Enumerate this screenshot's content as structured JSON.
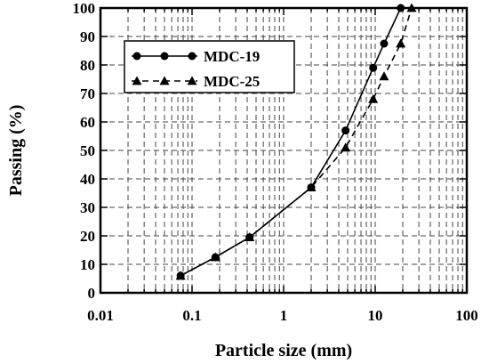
{
  "chart_data": {
    "type": "line",
    "xlabel": "Particle size (mm)",
    "ylabel": "Passing (%)",
    "xscale": "log",
    "xlim": [
      0.01,
      100
    ],
    "ylim": [
      0,
      100
    ],
    "grid": "dashed",
    "legend_position": "top-left",
    "xticks": [
      "0.01",
      "0.1",
      "1",
      "10",
      "100"
    ],
    "yticks": [
      "0",
      "10",
      "20",
      "30",
      "40",
      "50",
      "60",
      "70",
      "80",
      "90",
      "100"
    ],
    "series": [
      {
        "name": "MDC-19",
        "line_style": "solid",
        "marker": "circle",
        "x": [
          0.075,
          0.18,
          0.425,
          2.0,
          4.75,
          9.5,
          12.5,
          19.0
        ],
        "y": [
          6,
          12.5,
          19.5,
          37,
          57,
          79,
          87.5,
          100
        ]
      },
      {
        "name": "MDC-25",
        "line_style": "dashed",
        "marker": "triangle",
        "x": [
          0.075,
          0.18,
          0.425,
          2.0,
          4.75,
          9.5,
          12.5,
          19.0,
          25.0
        ],
        "y": [
          6,
          12.5,
          19.5,
          37,
          51,
          68,
          76,
          87.5,
          100
        ]
      }
    ]
  }
}
